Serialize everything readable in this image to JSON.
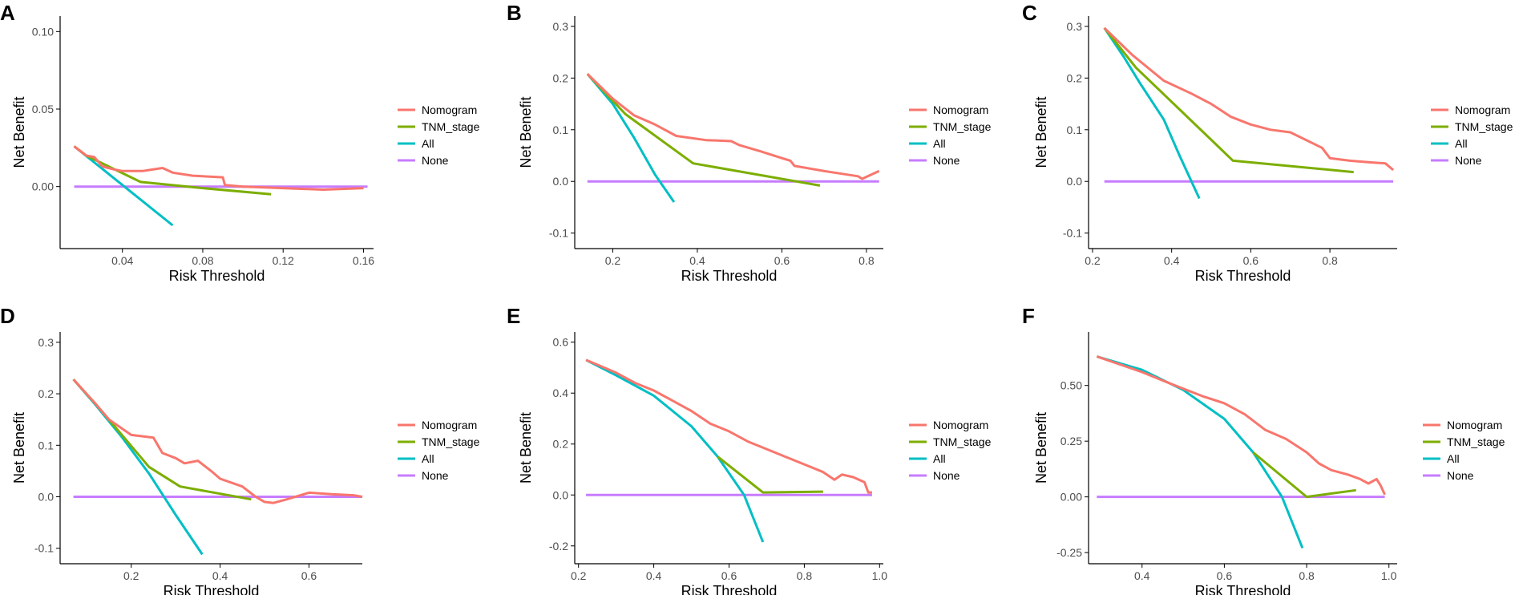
{
  "legend": {
    "entries": [
      {
        "name": "Nomogram",
        "color": "#F8766D"
      },
      {
        "name": "TNM_stage",
        "color": "#7CAE00"
      },
      {
        "name": "All",
        "color": "#00BFC4"
      },
      {
        "name": "None",
        "color": "#C77CFF"
      }
    ]
  },
  "chart_data": [
    {
      "panel": "A",
      "type": "line",
      "xlabel": "Risk Threshold",
      "ylabel": "Net Benefit",
      "xlim": [
        0.009,
        0.165
      ],
      "ylim": [
        -0.04,
        0.11
      ],
      "xticks": [
        0.04,
        0.08,
        0.12,
        0.16
      ],
      "xtick_labels": [
        "0.04",
        "0.08",
        "0.12",
        "0.16"
      ],
      "yticks": [
        0.0,
        0.05,
        0.1
      ],
      "ytick_labels": [
        "0.00",
        "0.05",
        "0.10"
      ],
      "series": [
        {
          "name": "Nomogram",
          "x": [
            0.016,
            0.022,
            0.026,
            0.03,
            0.036,
            0.04,
            0.05,
            0.055,
            0.06,
            0.065,
            0.075,
            0.09,
            0.091,
            0.1,
            0.12,
            0.14,
            0.16
          ],
          "y": [
            0.026,
            0.02,
            0.019,
            0.013,
            0.011,
            0.01,
            0.01,
            0.011,
            0.012,
            0.009,
            0.007,
            0.006,
            0.001,
            0.0,
            -0.001,
            -0.002,
            -0.001
          ]
        },
        {
          "name": "TNM_stage",
          "x": [
            0.016,
            0.022,
            0.03,
            0.049,
            0.08,
            0.114
          ],
          "y": [
            0.026,
            0.02,
            0.015,
            0.003,
            -0.001,
            -0.005
          ]
        },
        {
          "name": "All",
          "x": [
            0.016,
            0.065
          ],
          "y": [
            0.026,
            -0.025
          ]
        },
        {
          "name": "None",
          "x": [
            0.016,
            0.162
          ],
          "y": [
            0,
            0
          ]
        }
      ]
    },
    {
      "panel": "B",
      "type": "line",
      "xlabel": "Risk Threshold",
      "ylabel": "Net Benefit",
      "xlim": [
        0.11,
        0.84
      ],
      "ylim": [
        -0.13,
        0.32
      ],
      "xticks": [
        0.2,
        0.4,
        0.6,
        0.8
      ],
      "xtick_labels": [
        "0.2",
        "0.4",
        "0.6",
        "0.8"
      ],
      "yticks": [
        -0.1,
        0.0,
        0.1,
        0.2,
        0.3
      ],
      "ytick_labels": [
        "-0.1",
        "0.0",
        "0.1",
        "0.2",
        "0.3"
      ],
      "series": [
        {
          "name": "Nomogram",
          "x": [
            0.14,
            0.2,
            0.25,
            0.3,
            0.35,
            0.42,
            0.48,
            0.5,
            0.55,
            0.6,
            0.62,
            0.63,
            0.7,
            0.78,
            0.79,
            0.83
          ],
          "y": [
            0.208,
            0.16,
            0.128,
            0.11,
            0.088,
            0.08,
            0.078,
            0.07,
            0.058,
            0.045,
            0.04,
            0.03,
            0.02,
            0.01,
            0.005,
            0.02
          ]
        },
        {
          "name": "TNM_stage",
          "x": [
            0.14,
            0.23,
            0.39,
            0.69
          ],
          "y": [
            0.208,
            0.13,
            0.035,
            -0.008
          ]
        },
        {
          "name": "All",
          "x": [
            0.14,
            0.2,
            0.25,
            0.3,
            0.345
          ],
          "y": [
            0.208,
            0.15,
            0.085,
            0.013,
            -0.04
          ]
        },
        {
          "name": "None",
          "x": [
            0.14,
            0.83
          ],
          "y": [
            0,
            0
          ]
        }
      ]
    },
    {
      "panel": "C",
      "type": "line",
      "xlabel": "Risk Threshold",
      "ylabel": "Net Benefit",
      "xlim": [
        0.19,
        0.97
      ],
      "ylim": [
        -0.13,
        0.32
      ],
      "xticks": [
        0.2,
        0.4,
        0.6,
        0.8
      ],
      "xtick_labels": [
        "0.2",
        "0.4",
        "0.6",
        "0.8"
      ],
      "yticks": [
        -0.1,
        0.0,
        0.1,
        0.2,
        0.3
      ],
      "ytick_labels": [
        "-0.1",
        "0.0",
        "0.1",
        "0.2",
        "0.3"
      ],
      "series": [
        {
          "name": "Nomogram",
          "x": [
            0.23,
            0.3,
            0.38,
            0.45,
            0.5,
            0.55,
            0.6,
            0.65,
            0.7,
            0.78,
            0.8,
            0.85,
            0.9,
            0.94,
            0.96
          ],
          "y": [
            0.297,
            0.245,
            0.195,
            0.17,
            0.15,
            0.125,
            0.11,
            0.1,
            0.095,
            0.065,
            0.045,
            0.04,
            0.037,
            0.035,
            0.022
          ]
        },
        {
          "name": "TNM_stage",
          "x": [
            0.23,
            0.31,
            0.555,
            0.86
          ],
          "y": [
            0.297,
            0.22,
            0.04,
            0.018
          ]
        },
        {
          "name": "All",
          "x": [
            0.23,
            0.28,
            0.32,
            0.38,
            0.42,
            0.47
          ],
          "y": [
            0.297,
            0.24,
            0.19,
            0.12,
            0.05,
            -0.033
          ]
        },
        {
          "name": "None",
          "x": [
            0.23,
            0.96
          ],
          "y": [
            0,
            0
          ]
        }
      ]
    },
    {
      "panel": "D",
      "type": "line",
      "xlabel": "Risk Threshold",
      "ylabel": "Net Benefit",
      "xlim": [
        0.04,
        0.72
      ],
      "ylim": [
        -0.13,
        0.32
      ],
      "xticks": [
        0.2,
        0.4,
        0.6
      ],
      "xtick_labels": [
        "0.2",
        "0.4",
        "0.6"
      ],
      "yticks": [
        -0.1,
        0.0,
        0.1,
        0.2,
        0.3
      ],
      "ytick_labels": [
        "-0.1",
        "0.0",
        "0.1",
        "0.2",
        "0.3"
      ],
      "series": [
        {
          "name": "Nomogram",
          "x": [
            0.07,
            0.12,
            0.15,
            0.2,
            0.25,
            0.27,
            0.3,
            0.32,
            0.35,
            0.38,
            0.4,
            0.45,
            0.48,
            0.5,
            0.52,
            0.55,
            0.6,
            0.65,
            0.7,
            0.72
          ],
          "y": [
            0.228,
            0.18,
            0.15,
            0.12,
            0.115,
            0.085,
            0.075,
            0.065,
            0.07,
            0.05,
            0.035,
            0.02,
            0.0,
            -0.01,
            -0.012,
            -0.005,
            0.008,
            0.005,
            0.003,
            0.0
          ]
        },
        {
          "name": "TNM_stage",
          "x": [
            0.07,
            0.12,
            0.24,
            0.31,
            0.47
          ],
          "y": [
            0.228,
            0.18,
            0.058,
            0.02,
            -0.005
          ]
        },
        {
          "name": "All",
          "x": [
            0.07,
            0.12,
            0.18,
            0.24,
            0.3,
            0.36
          ],
          "y": [
            0.228,
            0.178,
            0.115,
            0.045,
            -0.035,
            -0.112
          ]
        },
        {
          "name": "None",
          "x": [
            0.07,
            0.72
          ],
          "y": [
            0,
            0
          ]
        }
      ]
    },
    {
      "panel": "E",
      "type": "line",
      "xlabel": "Risk Threshold",
      "ylabel": "Net Benefit",
      "xlim": [
        0.19,
        1.01
      ],
      "ylim": [
        -0.27,
        0.64
      ],
      "xticks": [
        0.2,
        0.4,
        0.6,
        0.8,
        1.0
      ],
      "xtick_labels": [
        "0.2",
        "0.4",
        "0.6",
        "0.8",
        "1.0"
      ],
      "yticks": [
        -0.2,
        0.0,
        0.2,
        0.4,
        0.6
      ],
      "ytick_labels": [
        "-0.2",
        "0.0",
        "0.2",
        "0.4",
        "0.6"
      ],
      "series": [
        {
          "name": "Nomogram",
          "x": [
            0.22,
            0.3,
            0.35,
            0.4,
            0.45,
            0.5,
            0.55,
            0.6,
            0.65,
            0.7,
            0.75,
            0.8,
            0.85,
            0.88,
            0.9,
            0.93,
            0.96,
            0.97,
            0.98
          ],
          "y": [
            0.53,
            0.48,
            0.44,
            0.41,
            0.37,
            0.33,
            0.28,
            0.25,
            0.21,
            0.18,
            0.15,
            0.12,
            0.09,
            0.06,
            0.08,
            0.07,
            0.05,
            0.01,
            0.01
          ]
        },
        {
          "name": "TNM_stage",
          "x": [
            0.57,
            0.69,
            0.85
          ],
          "y": [
            0.15,
            0.01,
            0.013
          ]
        },
        {
          "name": "All",
          "x": [
            0.22,
            0.3,
            0.4,
            0.5,
            0.57,
            0.64,
            0.69
          ],
          "y": [
            0.53,
            0.47,
            0.39,
            0.27,
            0.15,
            0.0,
            -0.185
          ]
        },
        {
          "name": "None",
          "x": [
            0.22,
            0.98
          ],
          "y": [
            0,
            0
          ]
        }
      ]
    },
    {
      "panel": "F",
      "type": "line",
      "xlabel": "Risk Threshold",
      "ylabel": "Net Benefit",
      "xlim": [
        0.27,
        1.02
      ],
      "ylim": [
        -0.3,
        0.74
      ],
      "xticks": [
        0.4,
        0.6,
        0.8,
        1.0
      ],
      "xtick_labels": [
        "0.4",
        "0.6",
        "0.8",
        "1.0"
      ],
      "yticks": [
        -0.25,
        0.0,
        0.25,
        0.5
      ],
      "ytick_labels": [
        "-0.25",
        "0.00",
        "0.25",
        "0.50"
      ],
      "series": [
        {
          "name": "Nomogram",
          "x": [
            0.29,
            0.4,
            0.48,
            0.55,
            0.6,
            0.65,
            0.7,
            0.75,
            0.8,
            0.83,
            0.86,
            0.9,
            0.93,
            0.95,
            0.97,
            0.98,
            0.99
          ],
          "y": [
            0.63,
            0.56,
            0.5,
            0.45,
            0.42,
            0.37,
            0.3,
            0.26,
            0.2,
            0.15,
            0.12,
            0.1,
            0.08,
            0.06,
            0.08,
            0.05,
            0.01
          ]
        },
        {
          "name": "TNM_stage",
          "x": [
            0.67,
            0.8,
            0.92
          ],
          "y": [
            0.2,
            0.0,
            0.03
          ]
        },
        {
          "name": "All",
          "x": [
            0.29,
            0.4,
            0.5,
            0.6,
            0.67,
            0.74,
            0.79
          ],
          "y": [
            0.63,
            0.57,
            0.48,
            0.35,
            0.2,
            0.0,
            -0.23
          ]
        },
        {
          "name": "None",
          "x": [
            0.29,
            0.99
          ],
          "y": [
            0,
            0
          ]
        }
      ]
    }
  ]
}
